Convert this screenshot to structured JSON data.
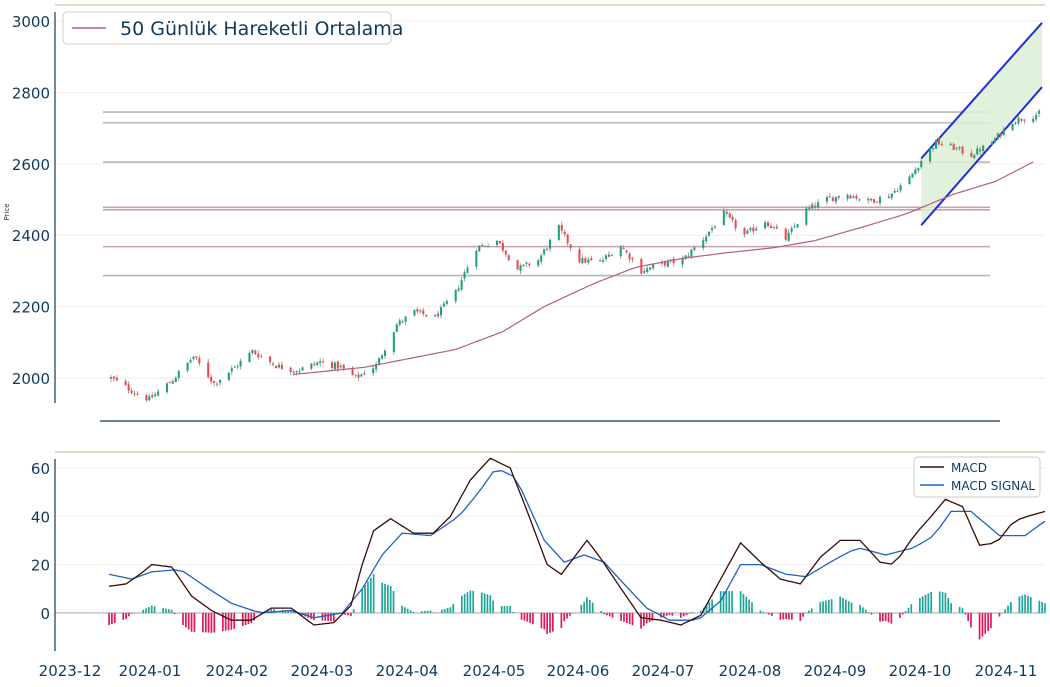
{
  "chart_data": [
    {
      "type": "candlestick",
      "ylabel": "Price",
      "ylim": [
        1930,
        3000
      ],
      "yticks": [
        2000,
        2200,
        2400,
        2600,
        2800,
        3000
      ],
      "legend": {
        "placement": "top-left",
        "entries": [
          {
            "label": "50 Günlük Hareketli Ortalama",
            "color": "#b5607a"
          }
        ]
      },
      "colors": {
        "up": "#1aa37a",
        "down": "#f0474f",
        "ma": "#b5607a",
        "channel": "#1f2fd6",
        "channel_fill": "#dcefd6",
        "level_gray": "#b8b8b8",
        "level_pink": "#c9a0ad"
      },
      "horizontal_levels": [
        2745,
        2715,
        2605,
        2478,
        2471,
        2368,
        2287
      ],
      "channel": {
        "start": "2024-09-20",
        "end": "2024-10-31",
        "upper": [
          2615,
          2995
        ],
        "lower": [
          2428,
          2815
        ]
      },
      "close_anchors": [
        [
          "2023-12-20",
          2000
        ],
        [
          "2023-12-29",
          1955
        ],
        [
          "2024-01-02",
          1940
        ],
        [
          "2024-01-10",
          1995
        ],
        [
          "2024-01-17",
          2060
        ],
        [
          "2024-01-24",
          1985
        ],
        [
          "2024-01-31",
          2030
        ],
        [
          "2024-02-06",
          2075
        ],
        [
          "2024-02-14",
          2035
        ],
        [
          "2024-02-21",
          2020
        ],
        [
          "2024-02-29",
          2045
        ],
        [
          "2024-03-07",
          2030
        ],
        [
          "2024-03-12",
          2000
        ],
        [
          "2024-03-19",
          2035
        ],
        [
          "2024-03-26",
          2150
        ],
        [
          "2024-04-01",
          2185
        ],
        [
          "2024-04-08",
          2170
        ],
        [
          "2024-04-15",
          2240
        ],
        [
          "2024-04-22",
          2365
        ],
        [
          "2024-04-29",
          2385
        ],
        [
          "2024-05-06",
          2305
        ],
        [
          "2024-05-13",
          2330
        ],
        [
          "2024-05-20",
          2420
        ],
        [
          "2024-05-27",
          2330
        ],
        [
          "2024-06-03",
          2325
        ],
        [
          "2024-06-10",
          2370
        ],
        [
          "2024-06-17",
          2300
        ],
        [
          "2024-06-24",
          2320
        ],
        [
          "2024-07-01",
          2330
        ],
        [
          "2024-07-08",
          2390
        ],
        [
          "2024-07-15",
          2460
        ],
        [
          "2024-07-22",
          2400
        ],
        [
          "2024-07-29",
          2440
        ],
        [
          "2024-08-05",
          2390
        ],
        [
          "2024-08-12",
          2470
        ],
        [
          "2024-08-19",
          2500
        ],
        [
          "2024-08-26",
          2515
        ],
        [
          "2024-09-02",
          2495
        ],
        [
          "2024-09-09",
          2510
        ],
        [
          "2024-09-16",
          2560
        ],
        [
          "2024-09-20",
          2610
        ],
        [
          "2024-09-25",
          2660
        ],
        [
          "2024-10-01",
          2645
        ],
        [
          "2024-10-07",
          2625
        ],
        [
          "2024-10-14",
          2660
        ],
        [
          "2024-10-21",
          2720
        ],
        [
          "2024-10-28",
          2735
        ],
        [
          "2024-10-30",
          2740
        ]
      ],
      "ma50_anchors": [
        [
          "2024-02-20",
          2010
        ],
        [
          "2024-03-15",
          2030
        ],
        [
          "2024-04-15",
          2080
        ],
        [
          "2024-05-01",
          2130
        ],
        [
          "2024-05-15",
          2200
        ],
        [
          "2024-06-01",
          2265
        ],
        [
          "2024-06-15",
          2310
        ],
        [
          "2024-07-01",
          2335
        ],
        [
          "2024-07-15",
          2350
        ],
        [
          "2024-08-01",
          2365
        ],
        [
          "2024-08-15",
          2385
        ],
        [
          "2024-09-01",
          2425
        ],
        [
          "2024-09-15",
          2460
        ],
        [
          "2024-10-01",
          2515
        ],
        [
          "2024-10-15",
          2550
        ],
        [
          "2024-10-28",
          2605
        ]
      ],
      "xdomain": [
        "2023-12-01",
        "2024-11-01"
      ]
    },
    {
      "type": "line+histogram",
      "ylim": [
        -17,
        67
      ],
      "yticks": [
        0,
        20,
        40,
        60
      ],
      "legend": {
        "placement": "top-right",
        "entries": [
          {
            "label": "MACD",
            "color": "#3a0a0a"
          },
          {
            "label": "MACD SIGNAL",
            "color": "#1f62c4"
          }
        ]
      },
      "colors": {
        "macd": "#3a0a0a",
        "signal": "#1f62c4",
        "hist_pos": "#1fa59a",
        "hist_neg": "#e0185e"
      },
      "macd_anchors": [
        [
          "2023-12-20",
          11
        ],
        [
          "2023-12-26",
          12
        ],
        [
          "2024-01-01",
          17
        ],
        [
          "2024-01-04",
          20
        ],
        [
          "2024-01-11",
          19
        ],
        [
          "2024-01-18",
          7
        ],
        [
          "2024-01-25",
          1
        ],
        [
          "2024-02-01",
          -3
        ],
        [
          "2024-02-08",
          -3
        ],
        [
          "2024-02-15",
          2
        ],
        [
          "2024-02-22",
          2
        ],
        [
          "2024-03-01",
          -5
        ],
        [
          "2024-03-08",
          -4
        ],
        [
          "2024-03-14",
          3
        ],
        [
          "2024-03-18",
          20
        ],
        [
          "2024-03-22",
          34
        ],
        [
          "2024-03-28",
          39
        ],
        [
          "2024-04-05",
          33
        ],
        [
          "2024-04-12",
          33
        ],
        [
          "2024-04-18",
          40
        ],
        [
          "2024-04-25",
          55
        ],
        [
          "2024-05-02",
          64
        ],
        [
          "2024-05-09",
          60
        ],
        [
          "2024-05-15",
          42
        ],
        [
          "2024-05-22",
          20
        ],
        [
          "2024-05-27",
          16
        ],
        [
          "2024-06-05",
          30
        ],
        [
          "2024-06-09",
          24
        ],
        [
          "2024-06-17",
          10
        ],
        [
          "2024-06-24",
          -2
        ],
        [
          "2024-07-01",
          -3
        ],
        [
          "2024-07-08",
          -5
        ],
        [
          "2024-07-15",
          -1
        ],
        [
          "2024-07-22",
          14
        ],
        [
          "2024-07-29",
          29
        ],
        [
          "2024-08-05",
          21
        ],
        [
          "2024-08-12",
          14
        ],
        [
          "2024-08-19",
          12
        ],
        [
          "2024-08-26",
          23
        ],
        [
          "2024-09-02",
          30
        ],
        [
          "2024-09-09",
          30
        ],
        [
          "2024-09-16",
          21
        ],
        [
          "2024-09-21",
          20
        ],
        [
          "2024-09-28",
          32
        ],
        [
          "2024-10-04",
          40
        ],
        [
          "2024-10-09",
          47
        ],
        [
          "2024-10-15",
          44
        ],
        [
          "2024-10-21",
          28
        ],
        [
          "2024-10-27",
          29
        ],
        [
          "2024-11-02",
          38
        ],
        [
          "2024-11-07",
          40
        ],
        [
          "2024-11-13",
          42
        ]
      ],
      "signal_anchors": [
        [
          "2023-12-20",
          16
        ],
        [
          "2023-12-28",
          14
        ],
        [
          "2024-01-04",
          17
        ],
        [
          "2024-01-14",
          18
        ],
        [
          "2024-01-24",
          10
        ],
        [
          "2024-02-01",
          4
        ],
        [
          "2024-02-11",
          0
        ],
        [
          "2024-02-22",
          1
        ],
        [
          "2024-03-01",
          -2
        ],
        [
          "2024-03-11",
          0
        ],
        [
          "2024-03-18",
          10
        ],
        [
          "2024-03-25",
          24
        ],
        [
          "2024-04-01",
          33
        ],
        [
          "2024-04-11",
          32
        ],
        [
          "2024-04-21",
          40
        ],
        [
          "2024-04-28",
          50
        ],
        [
          "2024-05-04",
          60
        ],
        [
          "2024-05-11",
          56
        ],
        [
          "2024-05-21",
          30
        ],
        [
          "2024-05-28",
          21
        ],
        [
          "2024-06-04",
          24
        ],
        [
          "2024-06-11",
          21
        ],
        [
          "2024-06-18",
          12
        ],
        [
          "2024-06-26",
          2
        ],
        [
          "2024-07-04",
          -3
        ],
        [
          "2024-07-14",
          -3
        ],
        [
          "2024-07-22",
          5
        ],
        [
          "2024-07-29",
          20
        ],
        [
          "2024-08-05",
          20
        ],
        [
          "2024-08-14",
          16
        ],
        [
          "2024-08-21",
          15
        ],
        [
          "2024-08-31",
          22
        ],
        [
          "2024-09-08",
          27
        ],
        [
          "2024-09-18",
          24
        ],
        [
          "2024-09-28",
          27
        ],
        [
          "2024-10-05",
          32
        ],
        [
          "2024-10-11",
          42
        ],
        [
          "2024-10-18",
          42
        ],
        [
          "2024-10-28",
          32
        ],
        [
          "2024-11-06",
          32
        ],
        [
          "2024-11-13",
          38
        ]
      ],
      "xdomain": [
        "2023-12-01",
        "2024-11-13"
      ]
    }
  ],
  "x_axis": {
    "tick_labels": [
      "2023-12",
      "2024-01",
      "2024-02",
      "2024-03",
      "2024-04",
      "2024-05",
      "2024-06",
      "2024-07",
      "2024-08",
      "2024-09",
      "2024-10",
      "2024-11"
    ]
  }
}
